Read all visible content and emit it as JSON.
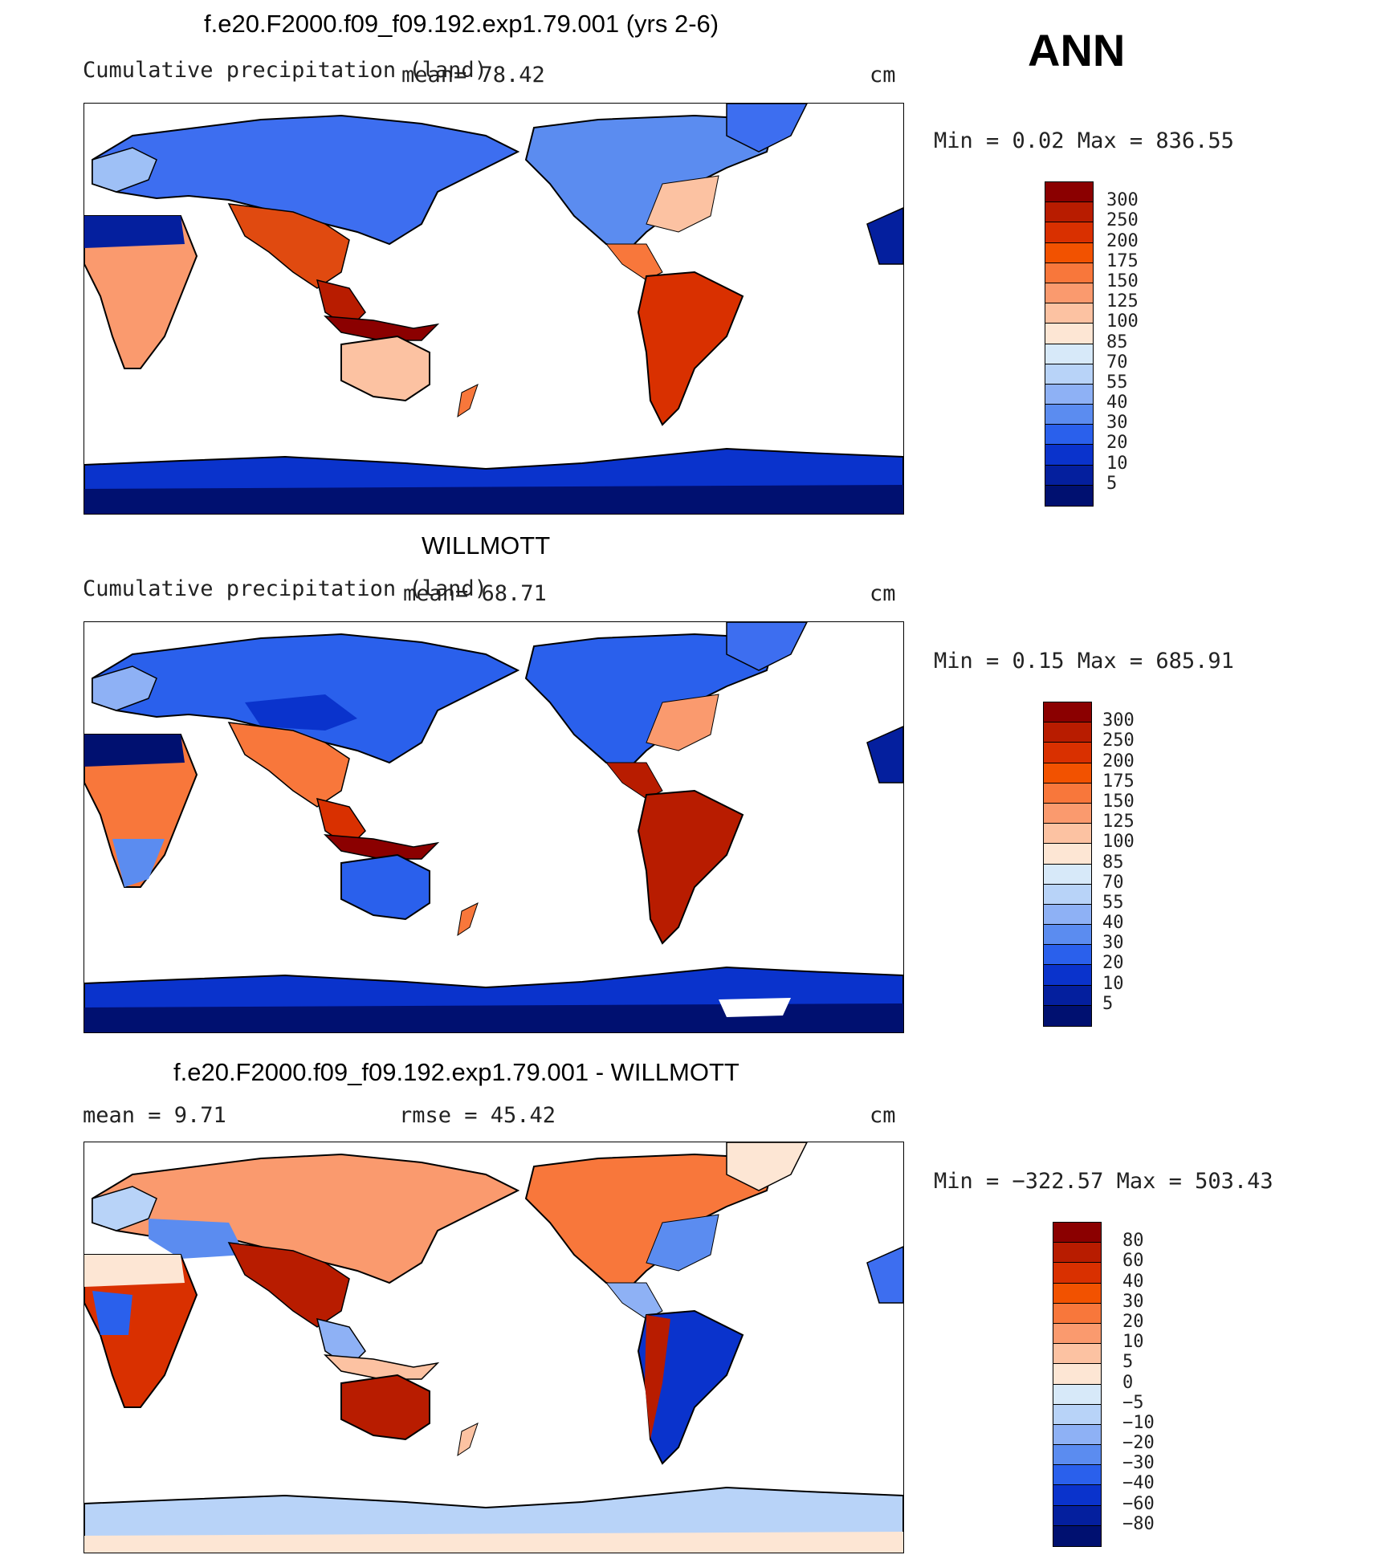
{
  "season": "ANN",
  "panels": [
    {
      "title": "f.e20.F2000.f09_f09.192.exp1.79.001 (yrs 2-6)",
      "subtitle": "Cumulative precipitation (land)",
      "stat1": "mean=   78.42",
      "stat2": "",
      "units": "cm",
      "minmax": "Min =    0.02 Max = 836.55",
      "colorbar": {
        "labels": [
          "300",
          "250",
          "200",
          "175",
          "150",
          "125",
          "100",
          "85",
          "70",
          "55",
          "40",
          "30",
          "20",
          "10",
          "5"
        ],
        "colors": [
          "#8b0000",
          "#b81c00",
          "#d93000",
          "#f25200",
          "#f8773b",
          "#fa9a6e",
          "#fcc2a2",
          "#fde6d4",
          "#d7e9f9",
          "#b8d3f8",
          "#8eb1f5",
          "#5b8cf0",
          "#2a60ec",
          "#0a33cc",
          "#041f9e",
          "#001070"
        ]
      }
    },
    {
      "title": "WILLMOTT",
      "subtitle": "Cumulative precipitation (land)",
      "stat1": "mean=   68.71",
      "stat2": "",
      "units": "cm",
      "minmax": "Min =    0.15 Max = 685.91",
      "colorbar": {
        "labels": [
          "300",
          "250",
          "200",
          "175",
          "150",
          "125",
          "100",
          "85",
          "70",
          "55",
          "40",
          "30",
          "20",
          "10",
          "5"
        ],
        "colors": [
          "#8b0000",
          "#b81c00",
          "#d93000",
          "#f25200",
          "#f8773b",
          "#fa9a6e",
          "#fcc2a2",
          "#fde6d4",
          "#d7e9f9",
          "#b8d3f8",
          "#8eb1f5",
          "#5b8cf0",
          "#2a60ec",
          "#0a33cc",
          "#041f9e",
          "#001070"
        ]
      }
    },
    {
      "title": "f.e20.F2000.f09_f09.192.exp1.79.001 - WILLMOTT",
      "subtitle": "",
      "stat1": "mean =     9.71",
      "stat2": "rmse =    45.42",
      "units": "cm",
      "minmax": "Min = −322.57 Max = 503.43",
      "colorbar": {
        "labels": [
          "80",
          "60",
          "40",
          "30",
          "20",
          "10",
          "5",
          "0",
          "−5",
          "−10",
          "−20",
          "−30",
          "−40",
          "−60",
          "−80"
        ],
        "colors": [
          "#8b0000",
          "#b81c00",
          "#d93000",
          "#f25200",
          "#f8773b",
          "#fa9a6e",
          "#fcc2a2",
          "#fde6d4",
          "#d7e9f9",
          "#b8d3f8",
          "#8eb1f5",
          "#5b8cf0",
          "#2a60ec",
          "#0a33cc",
          "#041f9e",
          "#001070"
        ]
      }
    }
  ]
}
